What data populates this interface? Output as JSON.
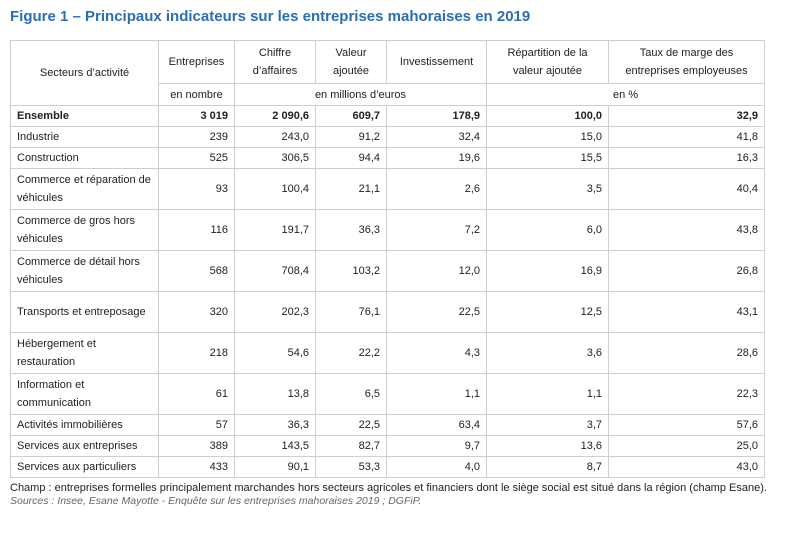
{
  "title": "Figure 1 – Principaux indicateurs sur les entreprises mahoraises en 2019",
  "headers": {
    "sector": "Secteurs d’activité",
    "entreprises": "Entreprises",
    "ca": "Chiffre d’affaires",
    "va": "Valeur ajoutée",
    "invest": "Investissement",
    "repart": "Répartition de la valeur ajoutée",
    "taux": "Taux de marge des entreprises employeuses"
  },
  "units": {
    "nombre": "en nombre",
    "millions": "en millions d’euros",
    "pct": "en %"
  },
  "rows": [
    {
      "label": "Ensemble",
      "entreprises": "3 019",
      "ca": "2 090,6",
      "va": "609,7",
      "invest": "178,9",
      "repart": "100,0",
      "taux": "32,9"
    },
    {
      "label": "Industrie",
      "entreprises": "239",
      "ca": "243,0",
      "va": "91,2",
      "invest": "32,4",
      "repart": "15,0",
      "taux": "41,8"
    },
    {
      "label": "Construction",
      "entreprises": "525",
      "ca": "306,5",
      "va": "94,4",
      "invest": "19,6",
      "repart": "15,5",
      "taux": "16,3"
    },
    {
      "label": "Commerce et réparation de véhicules",
      "entreprises": "93",
      "ca": "100,4",
      "va": "21,1",
      "invest": "2,6",
      "repart": "3,5",
      "taux": "40,4"
    },
    {
      "label": "Commerce de gros hors véhicules",
      "entreprises": "116",
      "ca": "191,7",
      "va": "36,3",
      "invest": "7,2",
      "repart": "6,0",
      "taux": "43,8"
    },
    {
      "label": "Commerce de détail hors véhicules",
      "entreprises": "568",
      "ca": "708,4",
      "va": "103,2",
      "invest": "12,0",
      "repart": "16,9",
      "taux": "26,8"
    },
    {
      "label": "Transports et entreposage",
      "entreprises": "320",
      "ca": "202,3",
      "va": "76,1",
      "invest": "22,5",
      "repart": "12,5",
      "taux": "43,1"
    },
    {
      "label": "Hébergement et restauration",
      "entreprises": "218",
      "ca": "54,6",
      "va": "22,2",
      "invest": "4,3",
      "repart": "3,6",
      "taux": "28,6"
    },
    {
      "label": "Information et communication",
      "entreprises": "61",
      "ca": "13,8",
      "va": "6,5",
      "invest": "1,1",
      "repart": "1,1",
      "taux": "22,3"
    },
    {
      "label": "Activités immobilières",
      "entreprises": "57",
      "ca": "36,3",
      "va": "22,5",
      "invest": "63,4",
      "repart": "3,7",
      "taux": "57,6"
    },
    {
      "label": "Services aux entreprises",
      "entreprises": "389",
      "ca": "143,5",
      "va": "82,7",
      "invest": "9,7",
      "repart": "13,6",
      "taux": "25,0"
    },
    {
      "label": "Services aux particuliers",
      "entreprises": "433",
      "ca": "90,1",
      "va": "53,3",
      "invest": "4,0",
      "repart": "8,7",
      "taux": "43,0"
    }
  ],
  "footnote": "Champ : entreprises formelles principalement marchandes hors secteurs agricoles et financiers dont le siège social est situé dans la région (champ Esane).",
  "source": "Sources : Insee, Esane Mayotte - Enquête sur les entreprises mahoraises 2019 ; DGFiP."
}
